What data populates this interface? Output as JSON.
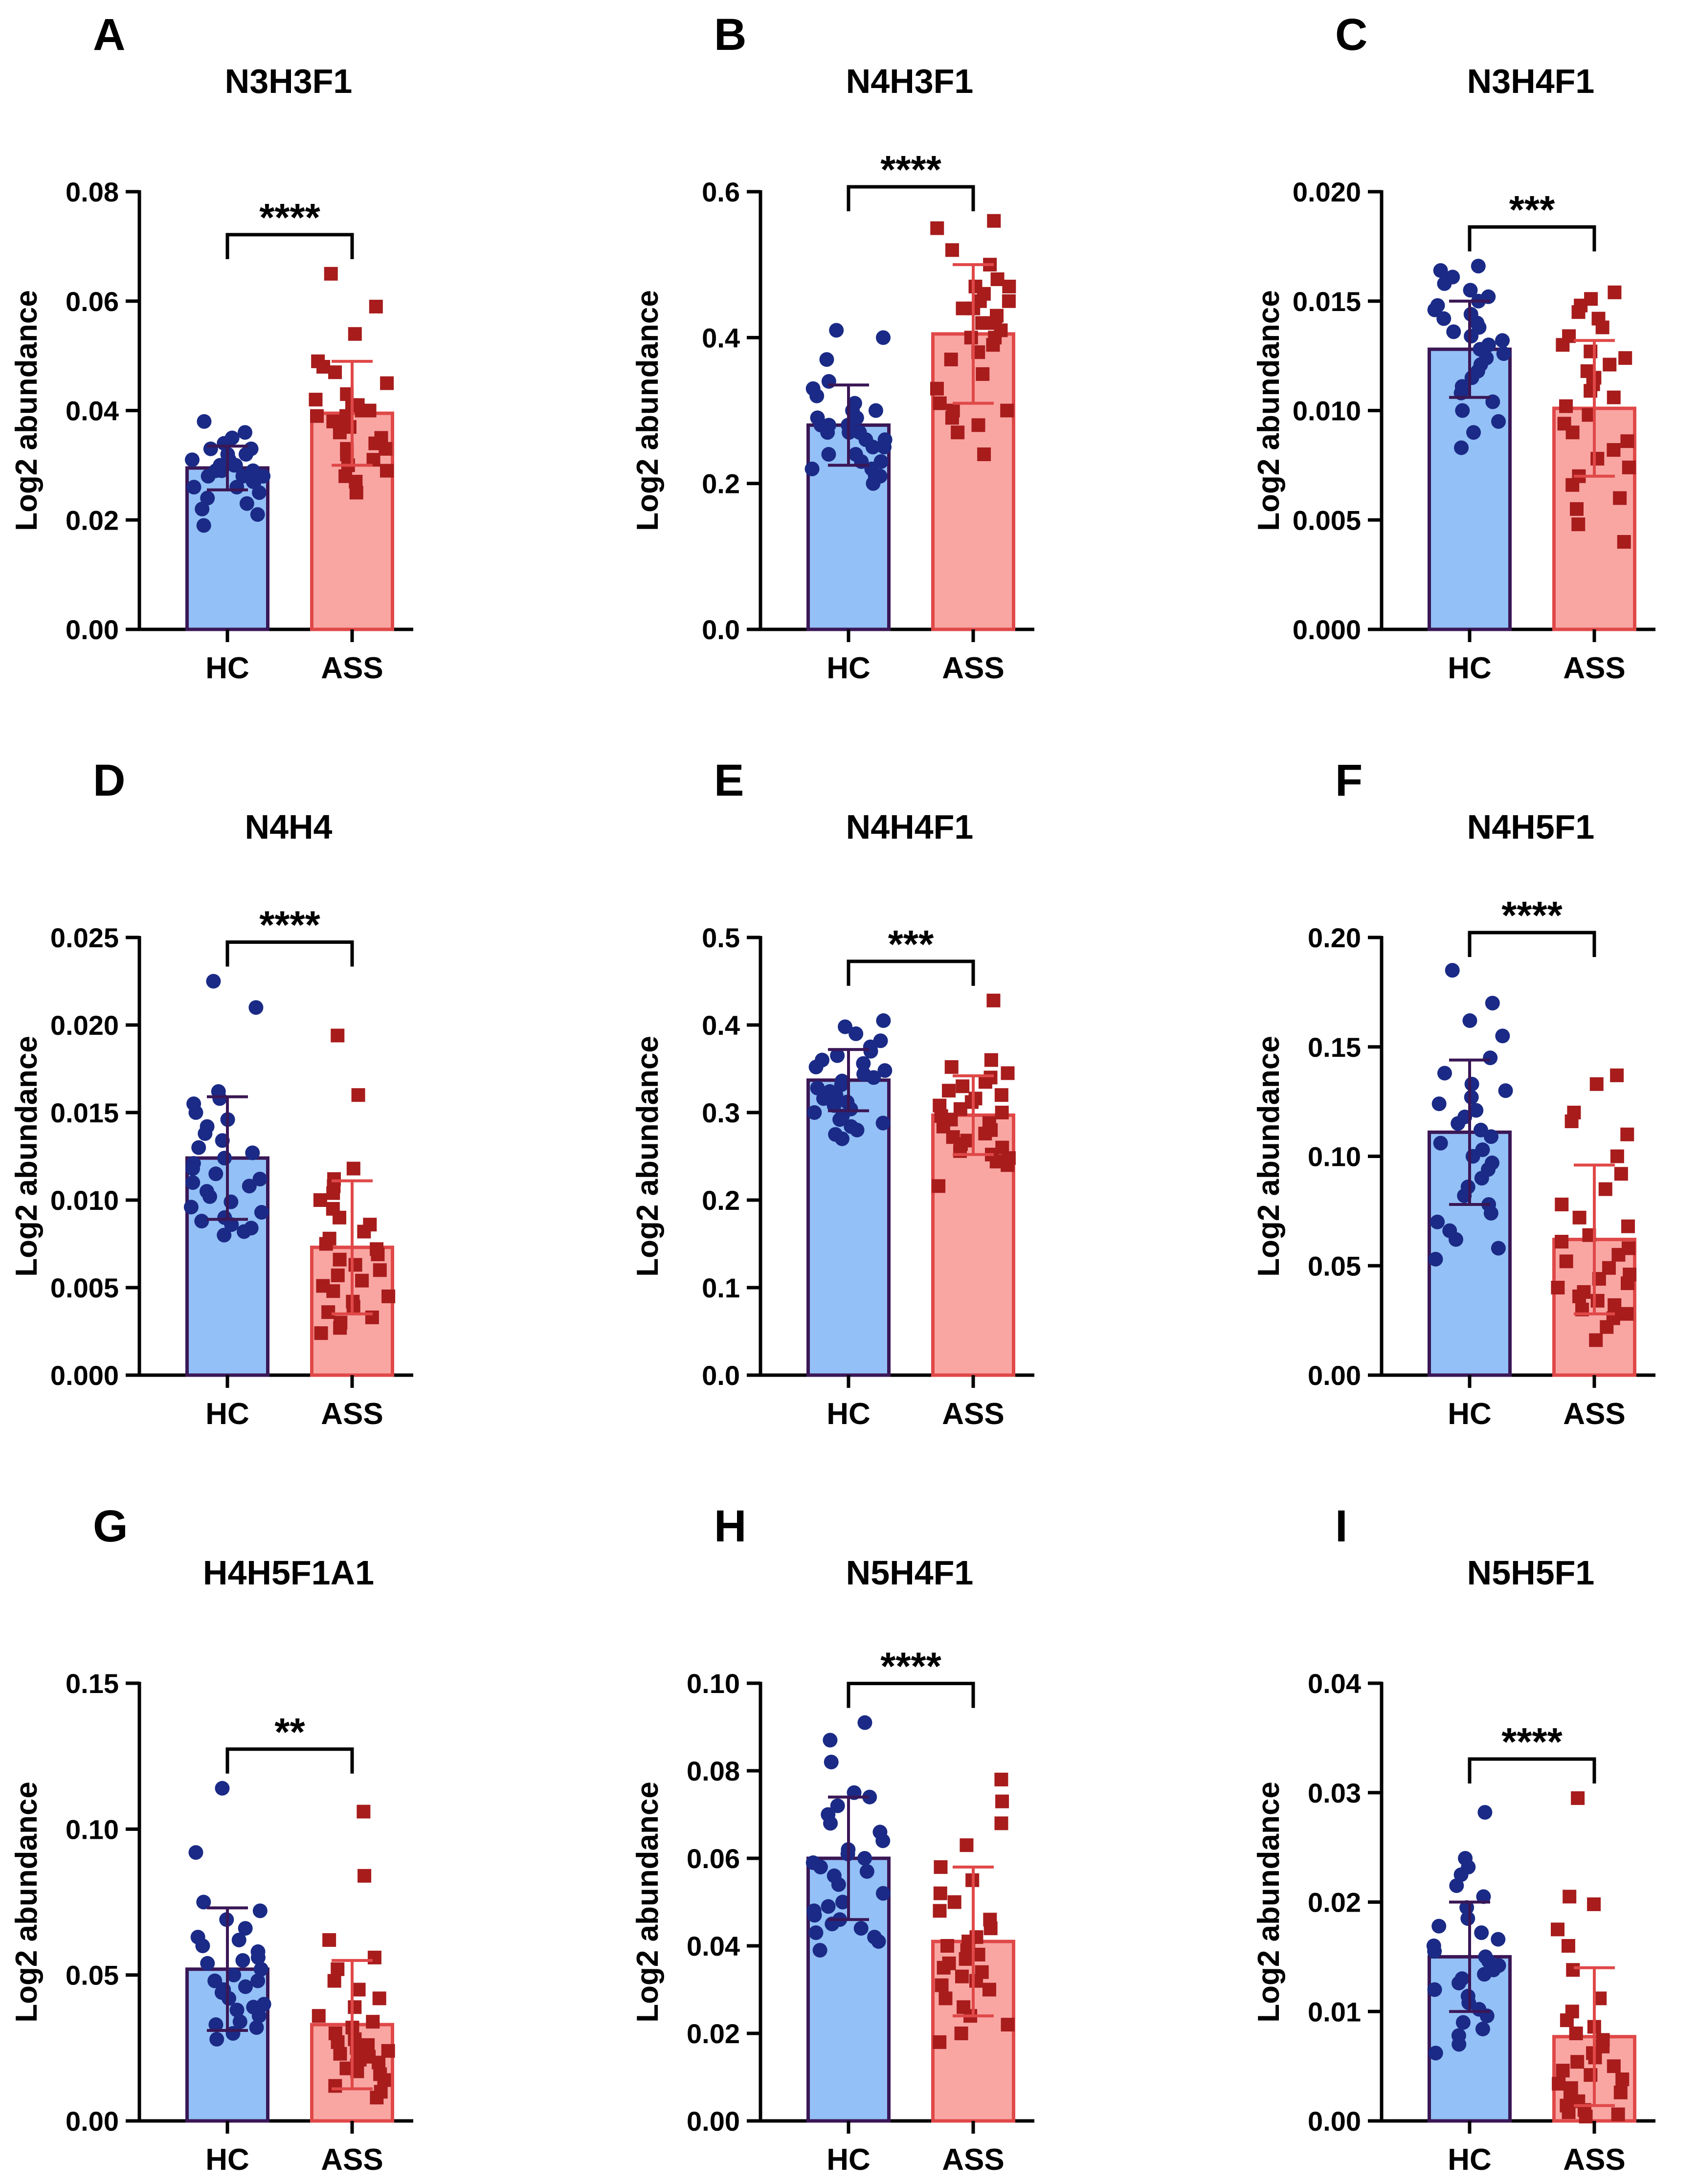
{
  "figure": {
    "colors": {
      "hc_fill": "#93c0f6",
      "hc_edge": "#3a1756",
      "hc_point": "#1a2a86",
      "ass_fill": "#f9a6a3",
      "ass_edge": "#e04848",
      "ass_point": "#a81c1c",
      "axis": "#000000"
    }
  },
  "chart_data": [
    {
      "panel": "A",
      "type": "bar",
      "title": "N3H3F1",
      "categories": [
        "HC",
        "ASS"
      ],
      "ylabel": "Log2 abundance",
      "ylim": [
        0,
        0.08
      ],
      "yticks": [
        "0.00",
        "0.02",
        "0.04",
        "0.06",
        "0.08"
      ],
      "tick_values": [
        0,
        0.02,
        0.04,
        0.06,
        0.08
      ],
      "significance": "****",
      "series": [
        {
          "name": "HC",
          "mean": 0.0295,
          "sd": 0.004,
          "points": [
            0.038,
            0.036,
            0.035,
            0.034,
            0.033,
            0.033,
            0.032,
            0.032,
            0.031,
            0.031,
            0.031,
            0.03,
            0.03,
            0.03,
            0.029,
            0.029,
            0.029,
            0.028,
            0.028,
            0.028,
            0.027,
            0.027,
            0.026,
            0.026,
            0.025,
            0.024,
            0.023,
            0.022,
            0.021,
            0.019
          ]
        },
        {
          "name": "ASS",
          "mean": 0.0395,
          "sd": 0.0095,
          "points": [
            0.065,
            0.059,
            0.054,
            0.049,
            0.048,
            0.047,
            0.045,
            0.043,
            0.042,
            0.041,
            0.041,
            0.04,
            0.04,
            0.039,
            0.039,
            0.038,
            0.038,
            0.037,
            0.036,
            0.035,
            0.034,
            0.033,
            0.033,
            0.032,
            0.031,
            0.03,
            0.029,
            0.028,
            0.027,
            0.025
          ]
        }
      ]
    },
    {
      "panel": "B",
      "type": "bar",
      "title": "N4H3F1",
      "categories": [
        "HC",
        "ASS"
      ],
      "ylabel": "Log2 abundance",
      "ylim": [
        0,
        0.6
      ],
      "yticks": [
        "0.0",
        "0.2",
        "0.4",
        "0.6"
      ],
      "tick_values": [
        0,
        0.2,
        0.4,
        0.6
      ],
      "significance": "****",
      "series": [
        {
          "name": "HC",
          "mean": 0.28,
          "sd": 0.055,
          "points": [
            0.41,
            0.4,
            0.37,
            0.34,
            0.33,
            0.32,
            0.31,
            0.3,
            0.3,
            0.29,
            0.29,
            0.28,
            0.28,
            0.28,
            0.27,
            0.27,
            0.27,
            0.26,
            0.26,
            0.25,
            0.25,
            0.24,
            0.24,
            0.23,
            0.23,
            0.22,
            0.22,
            0.21,
            0.21,
            0.2
          ]
        },
        {
          "name": "ASS",
          "mean": 0.405,
          "sd": 0.095,
          "points": [
            0.56,
            0.55,
            0.52,
            0.5,
            0.48,
            0.47,
            0.47,
            0.46,
            0.45,
            0.45,
            0.44,
            0.44,
            0.43,
            0.42,
            0.42,
            0.41,
            0.4,
            0.4,
            0.39,
            0.38,
            0.37,
            0.35,
            0.33,
            0.31,
            0.3,
            0.3,
            0.29,
            0.28,
            0.27,
            0.24
          ]
        }
      ]
    },
    {
      "panel": "C",
      "type": "bar",
      "title": "N3H4F1",
      "categories": [
        "HC",
        "ASS"
      ],
      "ylabel": "Log2 abundance",
      "ylim": [
        0,
        0.02
      ],
      "yticks": [
        "0.000",
        "0.005",
        "0.010",
        "0.015",
        "0.020"
      ],
      "tick_values": [
        0,
        0.005,
        0.01,
        0.015,
        0.02
      ],
      "significance": "***",
      "series": [
        {
          "name": "HC",
          "mean": 0.0128,
          "sd": 0.0022,
          "points": [
            0.0166,
            0.0164,
            0.0161,
            0.0158,
            0.0155,
            0.0152,
            0.015,
            0.0148,
            0.0146,
            0.0144,
            0.0142,
            0.014,
            0.0138,
            0.0136,
            0.0134,
            0.0132,
            0.013,
            0.0128,
            0.0126,
            0.0124,
            0.0121,
            0.0118,
            0.0115,
            0.0111,
            0.0108,
            0.0104,
            0.01,
            0.0095,
            0.009,
            0.0083
          ]
        },
        {
          "name": "ASS",
          "mean": 0.0101,
          "sd": 0.0031,
          "points": [
            0.0154,
            0.0151,
            0.0148,
            0.0145,
            0.0142,
            0.0138,
            0.0134,
            0.013,
            0.0127,
            0.0124,
            0.0121,
            0.0118,
            0.0115,
            0.0112,
            0.0109,
            0.0106,
            0.0102,
            0.0098,
            0.0094,
            0.009,
            0.0086,
            0.0082,
            0.0078,
            0.0074,
            0.007,
            0.0066,
            0.006,
            0.0055,
            0.0048,
            0.004
          ]
        }
      ]
    },
    {
      "panel": "D",
      "type": "bar",
      "title": "N4H4",
      "categories": [
        "HC",
        "ASS"
      ],
      "ylabel": "Log2 abundance",
      "ylim": [
        0,
        0.025
      ],
      "yticks": [
        "0.000",
        "0.005",
        "0.010",
        "0.015",
        "0.020",
        "0.025"
      ],
      "tick_values": [
        0,
        0.005,
        0.01,
        0.015,
        0.02,
        0.025
      ],
      "significance": "****",
      "series": [
        {
          "name": "HC",
          "mean": 0.0124,
          "sd": 0.0035,
          "points": [
            0.0225,
            0.021,
            0.0162,
            0.0158,
            0.0155,
            0.015,
            0.0146,
            0.0142,
            0.0138,
            0.0134,
            0.013,
            0.0127,
            0.0124,
            0.0121,
            0.0118,
            0.0115,
            0.0112,
            0.011,
            0.0108,
            0.0105,
            0.0102,
            0.0099,
            0.0096,
            0.0093,
            0.009,
            0.0088,
            0.0086,
            0.0084,
            0.0082,
            0.008
          ]
        },
        {
          "name": "ASS",
          "mean": 0.0073,
          "sd": 0.0038,
          "points": [
            0.0194,
            0.016,
            0.0118,
            0.0112,
            0.0108,
            0.0104,
            0.01,
            0.0095,
            0.009,
            0.0086,
            0.0082,
            0.0078,
            0.0075,
            0.0072,
            0.0069,
            0.0066,
            0.0063,
            0.006,
            0.0057,
            0.0054,
            0.0051,
            0.0048,
            0.0045,
            0.0042,
            0.0039,
            0.0036,
            0.0033,
            0.003,
            0.0027,
            0.0024
          ]
        }
      ]
    },
    {
      "panel": "E",
      "type": "bar",
      "title": "N4H4F1",
      "categories": [
        "HC",
        "ASS"
      ],
      "ylabel": "Log2 abundance",
      "ylim": [
        0,
        0.5
      ],
      "yticks": [
        "0.0",
        "0.1",
        "0.2",
        "0.3",
        "0.4",
        "0.5"
      ],
      "tick_values": [
        0,
        0.1,
        0.2,
        0.3,
        0.4,
        0.5
      ],
      "significance": "***",
      "series": [
        {
          "name": "HC",
          "mean": 0.337,
          "sd": 0.035,
          "points": [
            0.405,
            0.398,
            0.39,
            0.382,
            0.375,
            0.37,
            0.365,
            0.36,
            0.356,
            0.352,
            0.348,
            0.344,
            0.34,
            0.336,
            0.332,
            0.328,
            0.324,
            0.32,
            0.316,
            0.312,
            0.308,
            0.304,
            0.3,
            0.296,
            0.292,
            0.288,
            0.284,
            0.28,
            0.275,
            0.27
          ]
        },
        {
          "name": "ASS",
          "mean": 0.297,
          "sd": 0.045,
          "points": [
            0.428,
            0.36,
            0.352,
            0.345,
            0.34,
            0.335,
            0.33,
            0.325,
            0.32,
            0.316,
            0.312,
            0.308,
            0.304,
            0.3,
            0.296,
            0.292,
            0.288,
            0.284,
            0.28,
            0.276,
            0.272,
            0.268,
            0.264,
            0.26,
            0.256,
            0.252,
            0.248,
            0.244,
            0.24,
            0.216
          ]
        }
      ]
    },
    {
      "panel": "F",
      "type": "bar",
      "title": "N4H5F1",
      "categories": [
        "HC",
        "ASS"
      ],
      "ylabel": "Log2 abundance",
      "ylim": [
        0,
        0.2
      ],
      "yticks": [
        "0.00",
        "0.05",
        "0.10",
        "0.15",
        "0.20"
      ],
      "tick_values": [
        0,
        0.05,
        0.1,
        0.15,
        0.2
      ],
      "significance": "****",
      "series": [
        {
          "name": "HC",
          "mean": 0.111,
          "sd": 0.033,
          "points": [
            0.185,
            0.17,
            0.162,
            0.155,
            0.145,
            0.138,
            0.133,
            0.13,
            0.127,
            0.124,
            0.121,
            0.118,
            0.115,
            0.112,
            0.109,
            0.106,
            0.103,
            0.1,
            0.097,
            0.094,
            0.09,
            0.086,
            0.082,
            0.078,
            0.074,
            0.07,
            0.066,
            0.062,
            0.058,
            0.053
          ]
        },
        {
          "name": "ASS",
          "mean": 0.062,
          "sd": 0.034,
          "points": [
            0.137,
            0.133,
            0.12,
            0.116,
            0.11,
            0.1,
            0.092,
            0.085,
            0.078,
            0.072,
            0.068,
            0.064,
            0.061,
            0.058,
            0.055,
            0.052,
            0.049,
            0.046,
            0.044,
            0.042,
            0.04,
            0.038,
            0.036,
            0.034,
            0.032,
            0.03,
            0.028,
            0.026,
            0.022,
            0.016
          ]
        }
      ]
    },
    {
      "panel": "G",
      "type": "bar",
      "title": "H4H5F1A1",
      "categories": [
        "HC",
        "ASS"
      ],
      "ylabel": "Log2 abundance",
      "ylim": [
        0,
        0.15
      ],
      "yticks": [
        "0.00",
        "0.05",
        "0.10",
        "0.15"
      ],
      "tick_values": [
        0,
        0.05,
        0.1,
        0.15
      ],
      "significance": "**",
      "series": [
        {
          "name": "HC",
          "mean": 0.052,
          "sd": 0.021,
          "points": [
            0.114,
            0.092,
            0.075,
            0.072,
            0.069,
            0.066,
            0.063,
            0.06,
            0.058,
            0.056,
            0.054,
            0.052,
            0.05,
            0.048,
            0.046,
            0.044,
            0.042,
            0.04,
            0.038,
            0.036,
            0.034,
            0.032,
            0.03,
            0.028,
            0.048,
            0.055,
            0.062,
            0.045,
            0.039,
            0.033
          ]
        },
        {
          "name": "ASS",
          "mean": 0.033,
          "sd": 0.022,
          "points": [
            0.106,
            0.084,
            0.062,
            0.056,
            0.052,
            0.048,
            0.045,
            0.042,
            0.039,
            0.036,
            0.034,
            0.032,
            0.03,
            0.028,
            0.026,
            0.024,
            0.022,
            0.02,
            0.018,
            0.016,
            0.014,
            0.012,
            0.01,
            0.008,
            0.027,
            0.025,
            0.023,
            0.021,
            0.019,
            0.017
          ]
        }
      ]
    },
    {
      "panel": "H",
      "type": "bar",
      "title": "N5H4F1",
      "categories": [
        "HC",
        "ASS"
      ],
      "ylabel": "Log2 abundance",
      "ylim": [
        0,
        0.1
      ],
      "yticks": [
        "0.00",
        "0.02",
        "0.04",
        "0.06",
        "0.08",
        "0.10"
      ],
      "tick_values": [
        0,
        0.02,
        0.04,
        0.06,
        0.08,
        0.1
      ],
      "significance": "****",
      "series": [
        {
          "name": "HC",
          "mean": 0.06,
          "sd": 0.014,
          "points": [
            0.091,
            0.087,
            0.082,
            0.075,
            0.074,
            0.072,
            0.07,
            0.068,
            0.066,
            0.064,
            0.062,
            0.061,
            0.06,
            0.059,
            0.058,
            0.057,
            0.056,
            0.054,
            0.052,
            0.05,
            0.049,
            0.048,
            0.047,
            0.046,
            0.045,
            0.044,
            0.043,
            0.042,
            0.041,
            0.039
          ]
        },
        {
          "name": "ASS",
          "mean": 0.041,
          "sd": 0.017,
          "points": [
            0.078,
            0.073,
            0.068,
            0.063,
            0.058,
            0.055,
            0.052,
            0.05,
            0.048,
            0.046,
            0.044,
            0.042,
            0.041,
            0.04,
            0.039,
            0.038,
            0.037,
            0.036,
            0.035,
            0.034,
            0.033,
            0.032,
            0.031,
            0.03,
            0.028,
            0.026,
            0.024,
            0.022,
            0.02,
            0.018
          ]
        }
      ]
    },
    {
      "panel": "I",
      "type": "bar",
      "title": "N5H5F1",
      "categories": [
        "HC",
        "ASS"
      ],
      "ylabel": "Log2 abundance",
      "ylim": [
        0,
        0.04
      ],
      "yticks": [
        "0.00",
        "0.01",
        "0.02",
        "0.03",
        "0.04"
      ],
      "tick_values": [
        0,
        0.01,
        0.02,
        0.03,
        0.04
      ],
      "significance": "****",
      "series": [
        {
          "name": "HC",
          "mean": 0.015,
          "sd": 0.005,
          "points": [
            0.0282,
            0.024,
            0.0232,
            0.0225,
            0.0215,
            0.0205,
            0.0195,
            0.0185,
            0.0178,
            0.0172,
            0.0166,
            0.016,
            0.0155,
            0.015,
            0.0146,
            0.0142,
            0.0138,
            0.0134,
            0.013,
            0.0126,
            0.012,
            0.0114,
            0.0108,
            0.0102,
            0.0096,
            0.009,
            0.0084,
            0.0078,
            0.007,
            0.0062
          ]
        },
        {
          "name": "ASS",
          "mean": 0.0077,
          "sd": 0.0063,
          "points": [
            0.0295,
            0.0205,
            0.0198,
            0.0175,
            0.016,
            0.0138,
            0.0112,
            0.01,
            0.0092,
            0.0086,
            0.008,
            0.0074,
            0.0068,
            0.0062,
            0.0058,
            0.0054,
            0.005,
            0.0046,
            0.0042,
            0.0038,
            0.0034,
            0.003,
            0.0026,
            0.0022,
            0.0018,
            0.0014,
            0.001,
            0.0008,
            0.0006,
            0.0004
          ]
        }
      ]
    }
  ]
}
